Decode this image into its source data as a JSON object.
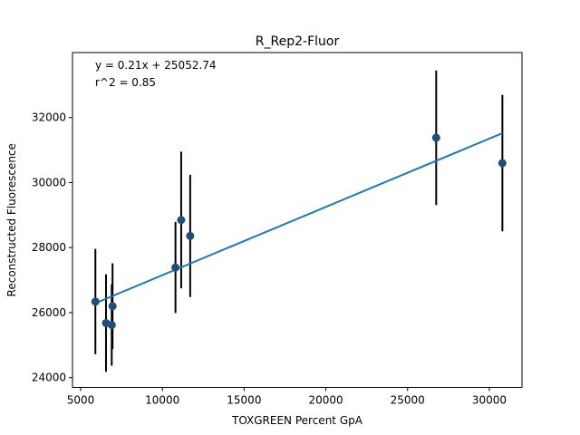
{
  "chart_data": {
    "type": "scatter",
    "title": "R_Rep2-Fluor",
    "xlabel": "TOXGREEN Percent GpA",
    "ylabel": "Reconstructed Fluorescence",
    "xlim": [
      4500,
      32000
    ],
    "ylim": [
      23700,
      34000
    ],
    "xticks": [
      5000,
      10000,
      15000,
      20000,
      25000,
      30000
    ],
    "yticks": [
      24000,
      26000,
      28000,
      30000,
      32000
    ],
    "grid": false,
    "annotations": [
      "y = 0.21x + 25052.74",
      "r^2 = 0.85"
    ],
    "points": [
      {
        "x": 5900,
        "y": 26340,
        "yerr": 1620
      },
      {
        "x": 6550,
        "y": 25680,
        "yerr": 1500
      },
      {
        "x": 6900,
        "y": 25620,
        "yerr": 1250
      },
      {
        "x": 6950,
        "y": 26200,
        "yerr": 1320
      },
      {
        "x": 10800,
        "y": 27390,
        "yerr": 1400
      },
      {
        "x": 11150,
        "y": 28850,
        "yerr": 2100
      },
      {
        "x": 11700,
        "y": 28360,
        "yerr": 1880
      },
      {
        "x": 26750,
        "y": 31380,
        "yerr": 2070
      },
      {
        "x": 30800,
        "y": 30600,
        "yerr": 2100
      }
    ],
    "fit": {
      "slope": 0.21,
      "intercept": 25052.74,
      "x_range": [
        5900,
        30800
      ]
    },
    "colors": {
      "points": "#1f4e79",
      "fit_line": "#1f77b4",
      "errorbars": "#000000"
    }
  }
}
